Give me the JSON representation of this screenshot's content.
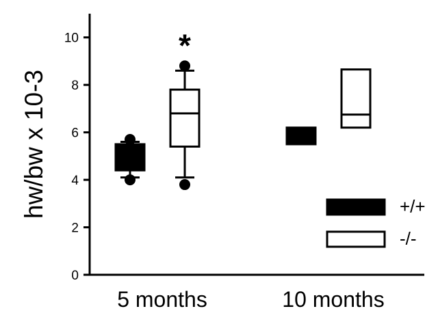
{
  "chart_data": {
    "type": "box",
    "ylabel": "hw/bw x 10-3",
    "ylim": [
      0,
      11
    ],
    "yticks": [
      0,
      2,
      4,
      6,
      8,
      10
    ],
    "categories": [
      "5 months",
      "10 months"
    ],
    "series": [
      {
        "name": "+/+",
        "fill": "#000000",
        "boxes": [
          {
            "category": "5 months",
            "whisker_low": 4.1,
            "q1": 4.4,
            "median": 4.9,
            "q3": 5.5,
            "whisker_high": 5.6,
            "outliers": [
              4.0,
              5.7
            ]
          },
          {
            "category": "10 months",
            "whisker_low": null,
            "q1": 5.5,
            "median": 5.8,
            "q3": 6.2,
            "whisker_high": null,
            "outliers": []
          }
        ]
      },
      {
        "name": "-/-",
        "fill": "#ffffff",
        "boxes": [
          {
            "category": "5 months",
            "whisker_low": 4.1,
            "q1": 5.4,
            "median": 6.8,
            "q3": 7.8,
            "whisker_high": 8.6,
            "outliers": [
              3.8,
              8.8
            ]
          },
          {
            "category": "10 months",
            "whisker_low": null,
            "q1": 6.2,
            "median": 6.75,
            "q3": 8.65,
            "whisker_high": null,
            "outliers": []
          }
        ]
      }
    ],
    "annotations": [
      {
        "text": "*",
        "category": "5 months",
        "series": "-/-",
        "y": 10.0
      }
    ],
    "legend": {
      "position": "bottom-right"
    }
  }
}
